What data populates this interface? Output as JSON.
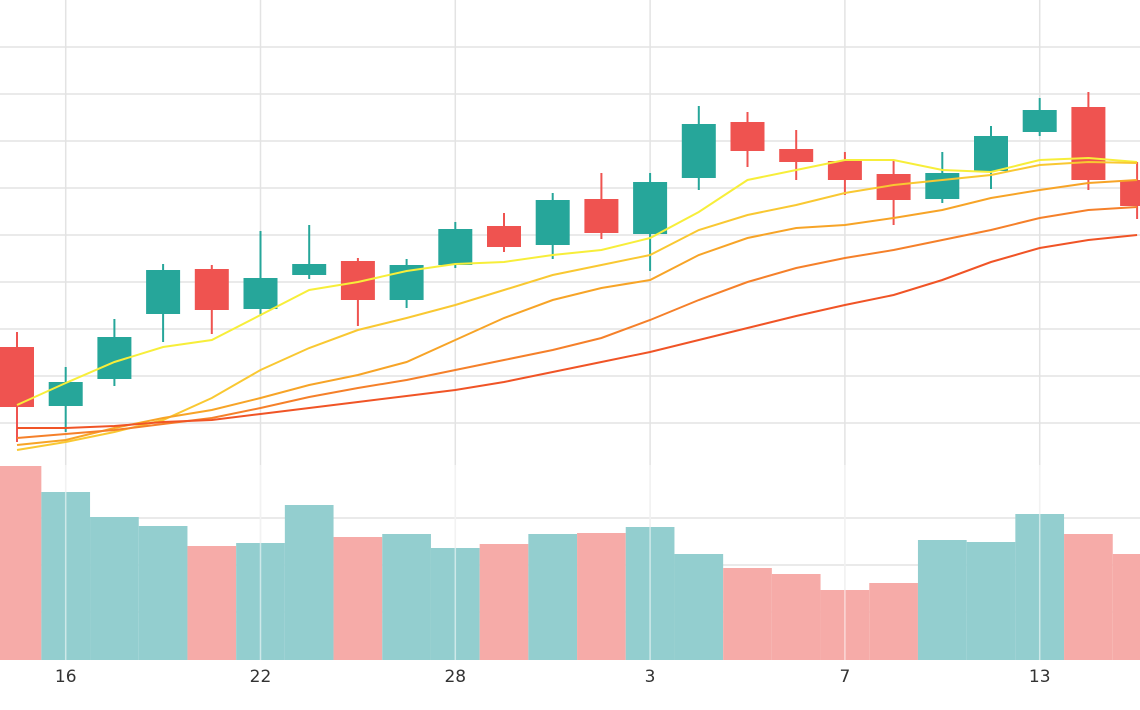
{
  "chart_data": {
    "type": "candlestick",
    "categories": [
      null,
      "16",
      null,
      null,
      null,
      "22",
      null,
      null,
      null,
      "28",
      null,
      null,
      null,
      "3",
      null,
      null,
      null,
      "7",
      null,
      null,
      null,
      "13",
      null,
      null
    ],
    "open": [
      123,
      64,
      91,
      156,
      201,
      161,
      195,
      209,
      170,
      205,
      244,
      225,
      271,
      236,
      292,
      348,
      321,
      309,
      296,
      271,
      299,
      338,
      363,
      290
    ],
    "high": [
      138,
      103,
      151,
      206,
      205,
      239,
      245,
      212,
      211,
      248,
      257,
      277,
      297,
      297,
      364,
      358,
      340,
      318,
      310,
      318,
      344,
      372,
      378,
      308
    ],
    "low": [
      28,
      38,
      84,
      128,
      136,
      154,
      191,
      144,
      162,
      202,
      218,
      211,
      231,
      199,
      280,
      303,
      290,
      275,
      245,
      267,
      281,
      334,
      280,
      251
    ],
    "close": [
      63,
      88,
      133,
      200,
      160,
      192,
      206,
      170,
      205,
      241,
      223,
      270,
      237,
      288,
      346,
      319,
      308,
      290,
      270,
      297,
      334,
      360,
      290,
      264
    ],
    "volume": [
      194,
      168,
      143,
      134,
      114,
      117,
      155,
      123,
      126,
      112,
      116,
      126,
      127,
      133,
      106,
      92,
      86,
      70,
      77,
      120,
      118,
      146,
      126,
      106
    ],
    "series": [
      {
        "color": "#f7ee3a",
        "values": [
          65,
          87,
          108,
          123,
          130,
          155,
          180,
          188,
          199,
          206,
          208,
          215,
          220,
          232,
          258,
          290,
          300,
          310,
          310,
          300,
          298,
          310,
          312,
          308
        ]
      },
      {
        "color": "#f9c832",
        "values": [
          20,
          28,
          38,
          50,
          72,
          100,
          122,
          140,
          152,
          165,
          180,
          195,
          205,
          215,
          240,
          255,
          265,
          277,
          285,
          290,
          295,
          305,
          308,
          307
        ]
      },
      {
        "color": "#f7a427",
        "values": [
          25,
          30,
          42,
          52,
          60,
          72,
          85,
          95,
          108,
          130,
          152,
          170,
          182,
          190,
          215,
          232,
          242,
          245,
          252,
          260,
          272,
          280,
          287,
          290
        ]
      },
      {
        "color": "#f5802a",
        "values": [
          32,
          36,
          40,
          46,
          52,
          62,
          73,
          82,
          90,
          100,
          110,
          120,
          132,
          150,
          170,
          188,
          202,
          212,
          220,
          230,
          240,
          252,
          260,
          263
        ]
      },
      {
        "color": "#f05426",
        "values": [
          42,
          42,
          44,
          48,
          50,
          56,
          62,
          68,
          74,
          80,
          88,
          98,
          108,
          118,
          130,
          142,
          154,
          165,
          175,
          190,
          208,
          222,
          230,
          235
        ]
      }
    ],
    "up_color": "#26a69a",
    "down_color": "#ef5350",
    "volume_up_color": "#93cecf",
    "volume_down_color": "#f6aba8",
    "ylim": [
      0,
      470
    ],
    "yticks": [
      47,
      94,
      141,
      188,
      235,
      282,
      329,
      376,
      423
    ],
    "volume_ylim": [
      0,
      195
    ],
    "volume_yticks": [
      48,
      95,
      142
    ],
    "grid": true
  }
}
